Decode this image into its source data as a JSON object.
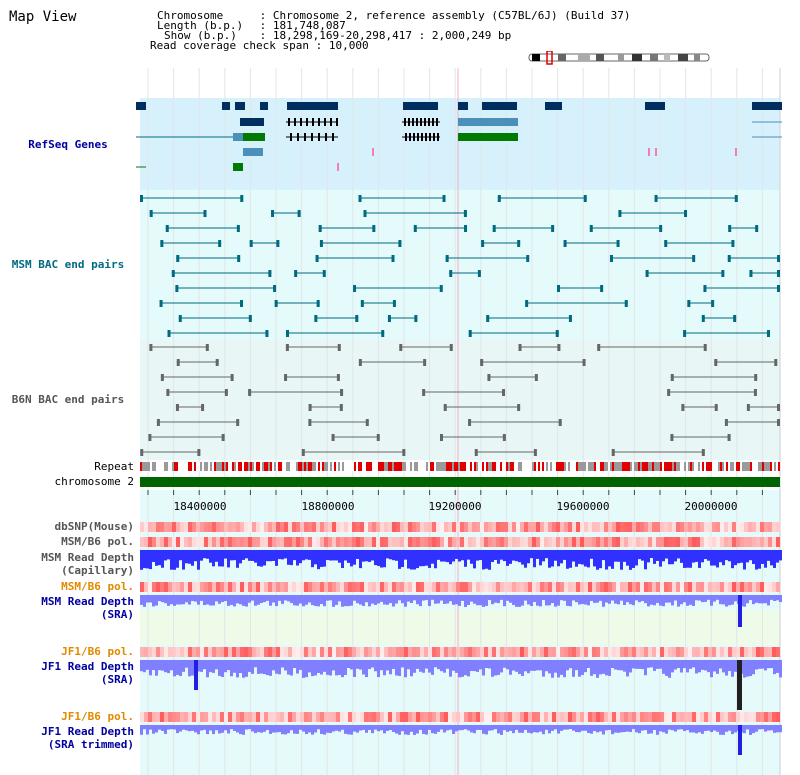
{
  "page_title": "Map View",
  "info": {
    "chromosome_key": "Chromosome",
    "chromosome_value": "Chromosome 2, reference assembly (C57BL/6J) (Build 37)",
    "length_key": "Length (b.p.)",
    "length_value": "181,748,087",
    "show_key": "Show (b.p.)",
    "show_value": "18,298,169-20,298,417 : 2,000,249 bp",
    "coverage_key": "Read coverage check span",
    "coverage_value": "10,000"
  },
  "tracks": {
    "refseq": "RefSeq Genes",
    "msm_bac": "MSM BAC end pairs",
    "b6n_bac": "B6N BAC end pairs",
    "repeat": "Repeat",
    "chromosome": "chromosome 2",
    "dbsnp": "dbSNP(Mouse)",
    "msm_b6_pol_1": "MSM/B6 pol.",
    "msm_depth_cap_1": "MSM Read Depth",
    "msm_depth_cap_2": "(Capillary)",
    "msm_b6_pol_2": "MSM/B6 pol.",
    "msm_depth_sra_1": "MSM Read Depth",
    "msm_depth_sra_2": "(SRA)",
    "jf1_b6_pol_1": "JF1/B6 pol.",
    "jf1_depth_sra_1": "JF1 Read Depth",
    "jf1_depth_sra_2": "(SRA)",
    "jf1_b6_pol_2": "JF1/B6 pol.",
    "jf1_depth_trim_1": "JF1 Read Depth",
    "jf1_depth_trim_2": "(SRA trimmed)"
  },
  "axis": {
    "ticks": [
      "18400000",
      "18800000",
      "19200000",
      "19600000",
      "20000000"
    ]
  },
  "colors": {
    "refseq_bg": "#d6f1fb",
    "track_bg": "#e5fafa",
    "navy": "#002e5e",
    "teal": "#006a80",
    "green": "#007a00",
    "chrom_green": "#006400",
    "depth_blue": "#3030ff",
    "depth_lightblue": "#7f7fff"
  }
}
